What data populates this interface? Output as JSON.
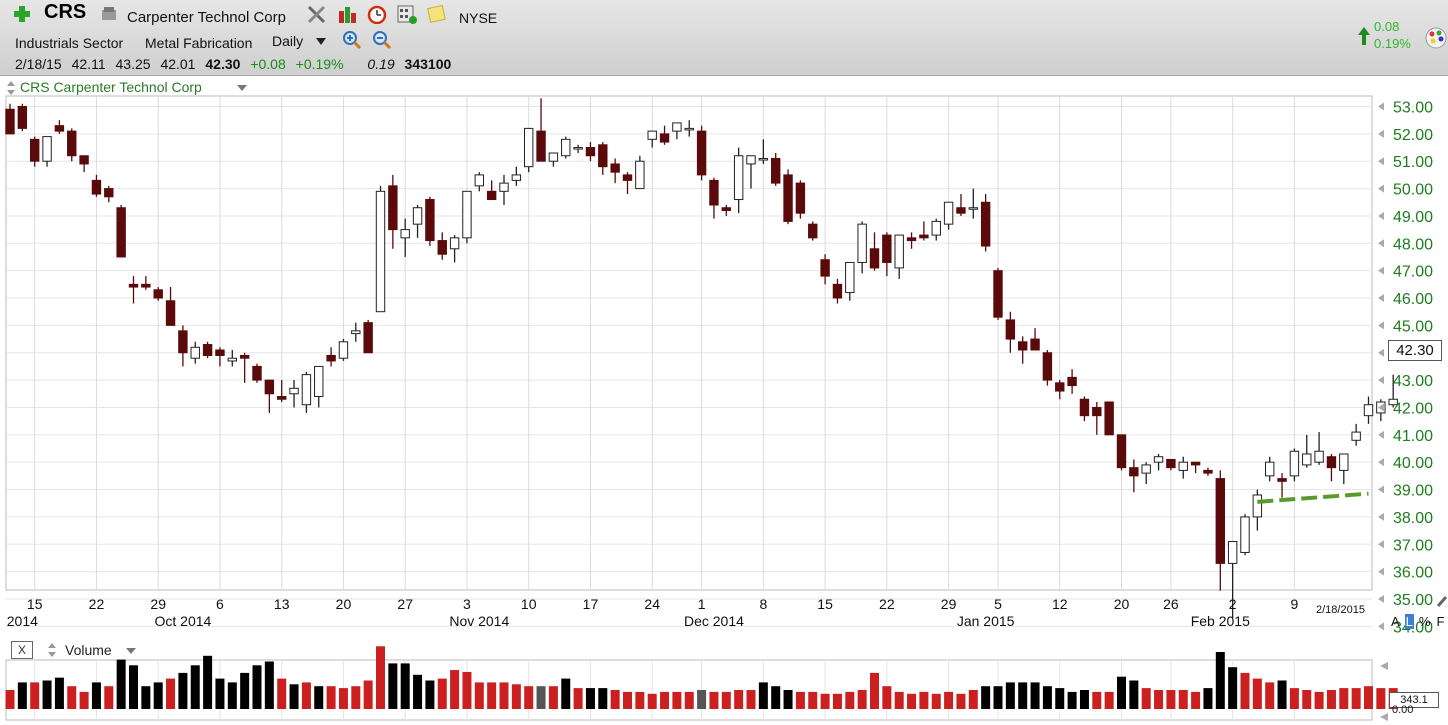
{
  "header": {
    "ticker": "CRS",
    "company": "Carpenter Technol Corp",
    "exchange": "NYSE",
    "sector": "Industrials Sector",
    "industry": "Metal Fabrication",
    "period": "Daily",
    "quote": {
      "date": "2/18/15",
      "open": "42.11",
      "high": "43.25",
      "low": "42.01",
      "close": "42.30",
      "change": "+0.08",
      "change_pct": "+0.19%",
      "extra": "0.19",
      "volume": "343100"
    },
    "change_box": {
      "abs": "0.08",
      "pct": "0.19%"
    }
  },
  "colors": {
    "up": "#ffffff",
    "down": "#5a0a0a",
    "vol_up": "#000000",
    "vol_down": "#cc1f1f",
    "trend": "#5a9a2a",
    "axis_text": "#1e7d1e"
  },
  "icons": [
    "plus-icon",
    "company-icon",
    "tools-icon",
    "bars-icon",
    "alarm-icon",
    "calc-icon",
    "note-icon",
    "zoom-in-icon",
    "zoom-out-icon",
    "up-arrow-icon",
    "palette-icon"
  ],
  "series_title": "CRS Carpenter Technol Corp",
  "volume_pane": {
    "title": "Volume",
    "close_label": "X",
    "last_value": "343.1",
    "zero_label": "0.00"
  },
  "scale_options": [
    "A",
    "L",
    "%",
    "F"
  ],
  "selected_scale": "L",
  "date_stamp": "2/18/2015",
  "last_price_label": "42.30",
  "chart_data": {
    "type": "candlestick",
    "title": "CRS Carpenter Technol Corp",
    "ylim": [
      34,
      53
    ],
    "y_ticks": [
      "34.00",
      "35.00",
      "36.00",
      "37.00",
      "38.00",
      "39.00",
      "40.00",
      "41.00",
      "42.00",
      "43.00",
      "44.00",
      "45.00",
      "46.00",
      "47.00",
      "48.00",
      "49.00",
      "50.00",
      "51.00",
      "52.00",
      "53.00"
    ],
    "x_ticks": [
      {
        "label": "15",
        "i": 2
      },
      {
        "label": "22",
        "i": 7
      },
      {
        "label": "29",
        "i": 12
      },
      {
        "label": "6",
        "i": 17
      },
      {
        "label": "13",
        "i": 22
      },
      {
        "label": "20",
        "i": 27
      },
      {
        "label": "27",
        "i": 32
      },
      {
        "label": "3",
        "i": 37
      },
      {
        "label": "10",
        "i": 42
      },
      {
        "label": "17",
        "i": 47
      },
      {
        "label": "24",
        "i": 52
      },
      {
        "label": "1",
        "i": 56
      },
      {
        "label": "8",
        "i": 61
      },
      {
        "label": "15",
        "i": 66
      },
      {
        "label": "22",
        "i": 71
      },
      {
        "label": "29",
        "i": 76
      },
      {
        "label": "5",
        "i": 80
      },
      {
        "label": "12",
        "i": 85
      },
      {
        "label": "20",
        "i": 90
      },
      {
        "label": "26",
        "i": 94
      },
      {
        "label": "2",
        "i": 99
      },
      {
        "label": "9",
        "i": 104
      }
    ],
    "month_labels": [
      {
        "label": "2014",
        "i": 1
      },
      {
        "label": "Oct 2014",
        "i": 14
      },
      {
        "label": "Nov 2014",
        "i": 38
      },
      {
        "label": "Dec 2014",
        "i": 57
      },
      {
        "label": "Jan 2015",
        "i": 79
      },
      {
        "label": "Feb 2015",
        "i": 98
      }
    ],
    "candles": [
      [
        52.9,
        53.1,
        52.0,
        52.0
      ],
      [
        53.0,
        53.1,
        52.1,
        52.2
      ],
      [
        51.8,
        51.9,
        50.8,
        51.0
      ],
      [
        51.0,
        51.9,
        50.8,
        51.9
      ],
      [
        52.3,
        52.5,
        52.0,
        52.1
      ],
      [
        52.1,
        52.2,
        51.0,
        51.2
      ],
      [
        51.2,
        51.2,
        50.6,
        50.9
      ],
      [
        50.3,
        50.5,
        49.7,
        49.8
      ],
      [
        50.0,
        50.1,
        49.5,
        49.7
      ],
      [
        49.3,
        49.4,
        47.5,
        47.5
      ],
      [
        46.5,
        46.8,
        45.8,
        46.4
      ],
      [
        46.5,
        46.8,
        46.3,
        46.4
      ],
      [
        46.3,
        46.4,
        45.9,
        46.0
      ],
      [
        45.9,
        46.4,
        45.0,
        45.0
      ],
      [
        44.8,
        45.0,
        43.5,
        44.0
      ],
      [
        43.8,
        44.4,
        43.6,
        44.2
      ],
      [
        44.3,
        44.4,
        43.8,
        43.9
      ],
      [
        44.1,
        44.2,
        43.5,
        43.9
      ],
      [
        43.7,
        44.1,
        43.5,
        43.8
      ],
      [
        43.9,
        44.0,
        42.9,
        43.8
      ],
      [
        43.5,
        43.6,
        42.9,
        43.0
      ],
      [
        43.0,
        43.0,
        41.8,
        42.5
      ],
      [
        42.4,
        43.0,
        42.2,
        42.3
      ],
      [
        42.5,
        43.0,
        42.0,
        42.7
      ],
      [
        42.1,
        43.3,
        41.8,
        43.2
      ],
      [
        42.4,
        43.5,
        42.0,
        43.5
      ],
      [
        43.9,
        44.2,
        43.5,
        43.7
      ],
      [
        43.8,
        44.5,
        43.7,
        44.4
      ],
      [
        44.7,
        45.1,
        44.4,
        44.8
      ],
      [
        45.1,
        45.2,
        44.0,
        44.0
      ],
      [
        45.5,
        50.1,
        45.5,
        49.9
      ],
      [
        50.1,
        50.5,
        47.8,
        48.5
      ],
      [
        48.2,
        48.9,
        47.5,
        48.5
      ],
      [
        48.7,
        49.4,
        48.2,
        49.3
      ],
      [
        49.6,
        49.7,
        47.9,
        48.1
      ],
      [
        48.1,
        48.4,
        47.4,
        47.6
      ],
      [
        47.8,
        48.3,
        47.3,
        48.2
      ],
      [
        48.2,
        49.9,
        48.0,
        49.9
      ],
      [
        50.1,
        50.6,
        49.9,
        50.5
      ],
      [
        49.9,
        50.3,
        49.6,
        49.6
      ],
      [
        49.9,
        50.5,
        49.4,
        50.2
      ],
      [
        50.3,
        50.8,
        50.1,
        50.5
      ],
      [
        50.8,
        52.2,
        50.6,
        52.2
      ],
      [
        52.1,
        53.3,
        51.1,
        51.0
      ],
      [
        51.0,
        51.3,
        50.8,
        51.3
      ],
      [
        51.2,
        51.9,
        51.1,
        51.8
      ],
      [
        51.5,
        51.6,
        51.3,
        51.5
      ],
      [
        51.5,
        51.7,
        51.0,
        51.2
      ],
      [
        51.6,
        51.7,
        50.5,
        50.8
      ],
      [
        50.9,
        51.1,
        50.2,
        50.6
      ],
      [
        50.5,
        50.6,
        49.8,
        50.3
      ],
      [
        50.0,
        51.2,
        50.0,
        51.0
      ],
      [
        51.8,
        52.0,
        51.5,
        52.1
      ],
      [
        52.0,
        52.3,
        51.6,
        51.7
      ],
      [
        52.1,
        52.4,
        51.8,
        52.4
      ],
      [
        52.2,
        52.5,
        51.9,
        52.2
      ],
      [
        52.1,
        52.3,
        50.3,
        50.5
      ],
      [
        50.3,
        50.4,
        48.9,
        49.4
      ],
      [
        49.3,
        49.4,
        49.0,
        49.2
      ],
      [
        49.6,
        51.5,
        49.1,
        51.2
      ],
      [
        50.9,
        51.2,
        50.0,
        51.2
      ],
      [
        51.1,
        51.8,
        50.9,
        51.1
      ],
      [
        51.1,
        51.3,
        50.1,
        50.2
      ],
      [
        50.5,
        50.7,
        48.7,
        48.8
      ],
      [
        50.2,
        50.3,
        48.9,
        49.1
      ],
      [
        48.7,
        48.8,
        48.1,
        48.2
      ],
      [
        47.4,
        47.6,
        46.5,
        46.8
      ],
      [
        46.5,
        46.7,
        45.8,
        46.0
      ],
      [
        46.2,
        47.2,
        45.9,
        47.3
      ],
      [
        47.3,
        48.8,
        46.9,
        48.7
      ],
      [
        47.8,
        48.4,
        47.0,
        47.1
      ],
      [
        48.3,
        48.4,
        46.8,
        47.3
      ],
      [
        47.1,
        48.3,
        46.7,
        48.3
      ],
      [
        48.2,
        48.4,
        47.8,
        48.1
      ],
      [
        48.3,
        48.8,
        48.1,
        48.2
      ],
      [
        48.3,
        48.9,
        48.1,
        48.8
      ],
      [
        48.7,
        49.4,
        48.5,
        49.5
      ],
      [
        49.3,
        49.8,
        49.0,
        49.1
      ],
      [
        49.3,
        50.0,
        48.9,
        49.3
      ],
      [
        49.5,
        49.8,
        47.7,
        47.9
      ],
      [
        47.0,
        47.1,
        45.2,
        45.3
      ],
      [
        45.2,
        45.5,
        44.0,
        44.5
      ],
      [
        44.4,
        44.6,
        43.6,
        44.1
      ],
      [
        44.5,
        44.9,
        44.1,
        44.1
      ],
      [
        44.0,
        44.1,
        42.8,
        43.0
      ],
      [
        42.9,
        43.0,
        42.3,
        42.6
      ],
      [
        43.1,
        43.4,
        42.5,
        42.8
      ],
      [
        42.3,
        42.4,
        41.5,
        41.7
      ],
      [
        42.0,
        42.2,
        41.0,
        41.7
      ],
      [
        42.2,
        42.2,
        41.0,
        41.0
      ],
      [
        41.0,
        41.0,
        39.7,
        39.8
      ],
      [
        39.8,
        40.1,
        38.9,
        39.5
      ],
      [
        39.6,
        40.0,
        39.2,
        39.9
      ],
      [
        40.0,
        40.3,
        39.7,
        40.2
      ],
      [
        40.1,
        40.1,
        39.7,
        39.8
      ],
      [
        39.7,
        40.2,
        39.4,
        40.0
      ],
      [
        40.0,
        40.0,
        39.6,
        39.9
      ],
      [
        39.7,
        39.8,
        39.5,
        39.6
      ],
      [
        39.4,
        39.7,
        35.3,
        36.3
      ],
      [
        36.3,
        37.1,
        34.3,
        37.1
      ],
      [
        36.7,
        38.1,
        36.6,
        38.0
      ],
      [
        38.0,
        39.0,
        37.5,
        38.8
      ],
      [
        39.5,
        40.2,
        39.3,
        40.0
      ],
      [
        39.4,
        39.6,
        38.7,
        39.3
      ],
      [
        39.5,
        40.5,
        39.3,
        40.4
      ],
      [
        39.9,
        41.0,
        39.8,
        40.3
      ],
      [
        40.0,
        41.1,
        39.9,
        40.4
      ],
      [
        40.2,
        40.3,
        39.3,
        39.8
      ],
      [
        39.7,
        40.3,
        39.2,
        40.3
      ],
      [
        40.8,
        41.4,
        40.6,
        41.1
      ],
      [
        41.7,
        42.4,
        41.4,
        42.1
      ],
      [
        41.8,
        42.3,
        41.5,
        42.2
      ],
      [
        42.1,
        43.2,
        42.0,
        42.3
      ]
    ],
    "volume": [
      [
        20,
        1
      ],
      [
        28,
        0
      ],
      [
        28,
        1
      ],
      [
        30,
        0
      ],
      [
        33,
        0
      ],
      [
        24,
        1
      ],
      [
        18,
        1
      ],
      [
        28,
        0
      ],
      [
        24,
        1
      ],
      [
        52,
        0
      ],
      [
        46,
        0
      ],
      [
        24,
        0
      ],
      [
        28,
        0
      ],
      [
        32,
        1
      ],
      [
        38,
        0
      ],
      [
        46,
        0
      ],
      [
        56,
        0
      ],
      [
        32,
        0
      ],
      [
        28,
        0
      ],
      [
        38,
        0
      ],
      [
        46,
        0
      ],
      [
        50,
        0
      ],
      [
        32,
        1
      ],
      [
        26,
        0
      ],
      [
        28,
        1
      ],
      [
        24,
        0
      ],
      [
        24,
        1
      ],
      [
        22,
        1
      ],
      [
        24,
        1
      ],
      [
        30,
        1
      ],
      [
        66,
        1
      ],
      [
        48,
        0
      ],
      [
        48,
        0
      ],
      [
        36,
        0
      ],
      [
        30,
        0
      ],
      [
        32,
        1
      ],
      [
        41,
        1
      ],
      [
        39,
        1
      ],
      [
        28,
        1
      ],
      [
        28,
        1
      ],
      [
        28,
        1
      ],
      [
        26,
        1
      ],
      [
        24,
        1
      ],
      [
        24,
        2
      ],
      [
        24,
        1
      ],
      [
        32,
        0
      ],
      [
        22,
        1
      ],
      [
        22,
        0
      ],
      [
        22,
        0
      ],
      [
        20,
        1
      ],
      [
        18,
        1
      ],
      [
        18,
        1
      ],
      [
        16,
        1
      ],
      [
        18,
        1
      ],
      [
        18,
        1
      ],
      [
        18,
        1
      ],
      [
        20,
        2
      ],
      [
        18,
        1
      ],
      [
        18,
        1
      ],
      [
        20,
        1
      ],
      [
        20,
        1
      ],
      [
        28,
        0
      ],
      [
        24,
        0
      ],
      [
        20,
        0
      ],
      [
        18,
        1
      ],
      [
        18,
        1
      ],
      [
        16,
        1
      ],
      [
        16,
        1
      ],
      [
        18,
        1
      ],
      [
        20,
        1
      ],
      [
        38,
        1
      ],
      [
        24,
        1
      ],
      [
        18,
        1
      ],
      [
        16,
        1
      ],
      [
        18,
        1
      ],
      [
        16,
        1
      ],
      [
        18,
        1
      ],
      [
        16,
        1
      ],
      [
        20,
        1
      ],
      [
        24,
        0
      ],
      [
        24,
        0
      ],
      [
        28,
        0
      ],
      [
        28,
        0
      ],
      [
        28,
        0
      ],
      [
        24,
        0
      ],
      [
        22,
        0
      ],
      [
        18,
        0
      ],
      [
        20,
        0
      ],
      [
        18,
        1
      ],
      [
        18,
        1
      ],
      [
        34,
        0
      ],
      [
        30,
        0
      ],
      [
        22,
        1
      ],
      [
        20,
        1
      ],
      [
        20,
        1
      ],
      [
        20,
        1
      ],
      [
        18,
        1
      ],
      [
        22,
        0
      ],
      [
        60,
        0
      ],
      [
        44,
        0
      ],
      [
        38,
        1
      ],
      [
        32,
        1
      ],
      [
        28,
        1
      ],
      [
        30,
        0
      ],
      [
        22,
        1
      ],
      [
        20,
        1
      ],
      [
        18,
        1
      ],
      [
        20,
        1
      ],
      [
        22,
        1
      ],
      [
        22,
        1
      ],
      [
        24,
        1
      ],
      [
        22,
        1
      ],
      [
        22,
        1
      ]
    ]
  }
}
